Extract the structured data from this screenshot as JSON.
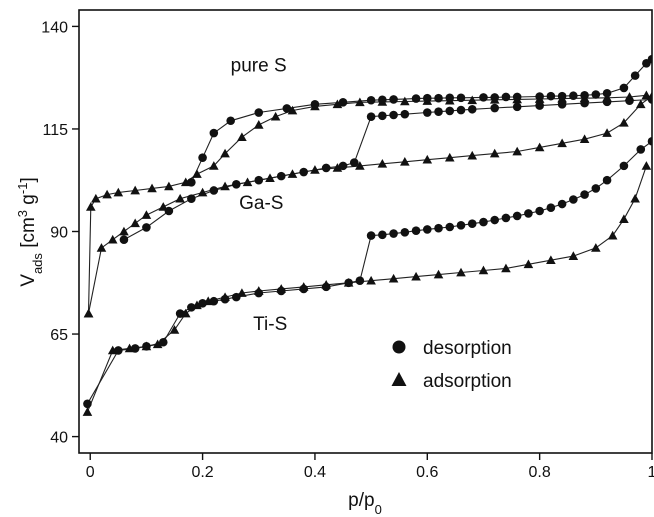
{
  "chart_data": {
    "type": "scatter",
    "xlabel": "p/p0",
    "ylabel": "Vads [cm3 g-1]",
    "xlim": [
      -0.02,
      1.0
    ],
    "ylim": [
      36,
      144
    ],
    "xticks": [
      {
        "value": 0,
        "label": "0"
      },
      {
        "value": 0.2,
        "label": "0.2"
      },
      {
        "value": 0.4,
        "label": "0.4"
      },
      {
        "value": 0.6,
        "label": "0.6"
      },
      {
        "value": 0.8,
        "label": "0.8"
      },
      {
        "value": 1.0,
        "label": "1"
      }
    ],
    "yticks": [
      {
        "value": 40,
        "label": "40"
      },
      {
        "value": 65,
        "label": "65"
      },
      {
        "value": 90,
        "label": "90"
      },
      {
        "value": 115,
        "label": "115"
      },
      {
        "value": 140,
        "label": "140"
      }
    ],
    "legend": {
      "placement": "lower-right",
      "entries": [
        {
          "label": "desorption",
          "marker": "circle"
        },
        {
          "label": "adsorption",
          "marker": "triangle"
        }
      ]
    },
    "annotations": [
      {
        "text": "pure S",
        "x": 0.25,
        "y": 129
      },
      {
        "text": "Ga-S",
        "x": 0.265,
        "y": 95.5
      },
      {
        "text": "Ti-S",
        "x": 0.29,
        "y": 66
      }
    ],
    "series": [
      {
        "group": "pure S",
        "kind": "adsorption",
        "marker": "triangle",
        "points": [
          [
            -0.003,
            70
          ],
          [
            0.001,
            96
          ],
          [
            0.01,
            98
          ],
          [
            0.03,
            99
          ],
          [
            0.05,
            99.5
          ],
          [
            0.08,
            100
          ],
          [
            0.11,
            100.5
          ],
          [
            0.14,
            101
          ],
          [
            0.17,
            102
          ],
          [
            0.19,
            104
          ],
          [
            0.22,
            106
          ],
          [
            0.24,
            109
          ],
          [
            0.27,
            113
          ],
          [
            0.3,
            116
          ],
          [
            0.33,
            118
          ],
          [
            0.36,
            119.5
          ],
          [
            0.4,
            120.5
          ],
          [
            0.44,
            121
          ],
          [
            0.48,
            121.5
          ],
          [
            0.52,
            121.6
          ],
          [
            0.56,
            121.7
          ],
          [
            0.6,
            121.8
          ],
          [
            0.64,
            121.9
          ],
          [
            0.68,
            122
          ],
          [
            0.72,
            122.1
          ],
          [
            0.76,
            122.2
          ],
          [
            0.8,
            122.3
          ],
          [
            0.84,
            122.4
          ],
          [
            0.88,
            122.5
          ],
          [
            0.92,
            122.6
          ],
          [
            0.96,
            122.8
          ],
          [
            0.99,
            123.2
          ]
        ]
      },
      {
        "group": "pure S",
        "kind": "desorption",
        "marker": "circle",
        "points": [
          [
            0.18,
            102
          ],
          [
            0.2,
            108
          ],
          [
            0.22,
            114
          ],
          [
            0.25,
            117
          ],
          [
            0.3,
            119
          ],
          [
            0.35,
            120
          ],
          [
            0.4,
            121
          ],
          [
            0.45,
            121.5
          ],
          [
            0.5,
            122
          ],
          [
            0.52,
            122.1
          ],
          [
            0.54,
            122.2
          ],
          [
            0.58,
            122.4
          ],
          [
            0.6,
            122.5
          ],
          [
            0.62,
            122.5
          ],
          [
            0.64,
            122.6
          ],
          [
            0.66,
            122.6
          ],
          [
            0.7,
            122.7
          ],
          [
            0.72,
            122.7
          ],
          [
            0.74,
            122.8
          ],
          [
            0.76,
            122.8
          ],
          [
            0.8,
            122.9
          ],
          [
            0.82,
            123
          ],
          [
            0.84,
            123
          ],
          [
            0.86,
            123.1
          ],
          [
            0.88,
            123.2
          ],
          [
            0.9,
            123.4
          ],
          [
            0.92,
            123.7
          ],
          [
            0.95,
            125
          ],
          [
            0.97,
            128
          ],
          [
            0.99,
            131
          ],
          [
            1.0,
            132
          ]
        ]
      },
      {
        "group": "Ga-S",
        "kind": "adsorption",
        "marker": "triangle",
        "points": [
          [
            -0.003,
            70
          ],
          [
            0.02,
            86
          ],
          [
            0.04,
            88
          ],
          [
            0.06,
            90
          ],
          [
            0.08,
            92
          ],
          [
            0.1,
            94
          ],
          [
            0.13,
            96
          ],
          [
            0.16,
            98
          ],
          [
            0.2,
            99.5
          ],
          [
            0.24,
            101
          ],
          [
            0.28,
            102
          ],
          [
            0.32,
            103
          ],
          [
            0.36,
            104
          ],
          [
            0.4,
            105
          ],
          [
            0.44,
            105.5
          ],
          [
            0.48,
            106
          ],
          [
            0.52,
            106.5
          ],
          [
            0.56,
            107
          ],
          [
            0.6,
            107.5
          ],
          [
            0.64,
            108
          ],
          [
            0.68,
            108.5
          ],
          [
            0.72,
            109
          ],
          [
            0.76,
            109.5
          ],
          [
            0.8,
            110.5
          ],
          [
            0.84,
            111.5
          ],
          [
            0.88,
            112.5
          ],
          [
            0.92,
            114
          ],
          [
            0.95,
            116.5
          ],
          [
            0.98,
            121
          ],
          [
            1.0,
            123
          ]
        ]
      },
      {
        "group": "Ga-S",
        "kind": "desorption",
        "marker": "circle",
        "points": [
          [
            0.06,
            88
          ],
          [
            0.1,
            91
          ],
          [
            0.14,
            95
          ],
          [
            0.18,
            98
          ],
          [
            0.22,
            100
          ],
          [
            0.26,
            101.5
          ],
          [
            0.3,
            102.5
          ],
          [
            0.34,
            103.5
          ],
          [
            0.38,
            104.5
          ],
          [
            0.42,
            105.5
          ],
          [
            0.45,
            106
          ],
          [
            0.47,
            106.8
          ],
          [
            0.5,
            118
          ],
          [
            0.52,
            118.2
          ],
          [
            0.54,
            118.4
          ],
          [
            0.56,
            118.6
          ],
          [
            0.6,
            119
          ],
          [
            0.62,
            119.2
          ],
          [
            0.64,
            119.4
          ],
          [
            0.66,
            119.6
          ],
          [
            0.68,
            119.8
          ],
          [
            0.72,
            120.1
          ],
          [
            0.76,
            120.4
          ],
          [
            0.8,
            120.7
          ],
          [
            0.84,
            121
          ],
          [
            0.88,
            121.3
          ],
          [
            0.92,
            121.6
          ],
          [
            0.96,
            121.9
          ],
          [
            1.0,
            122.2
          ]
        ]
      },
      {
        "group": "Ti-S",
        "kind": "adsorption",
        "marker": "triangle",
        "points": [
          [
            -0.005,
            46
          ],
          [
            0.04,
            61
          ],
          [
            0.07,
            61.5
          ],
          [
            0.1,
            62
          ],
          [
            0.12,
            62.5
          ],
          [
            0.15,
            66
          ],
          [
            0.17,
            70
          ],
          [
            0.19,
            72
          ],
          [
            0.21,
            73
          ],
          [
            0.24,
            74
          ],
          [
            0.27,
            75
          ],
          [
            0.3,
            75.5
          ],
          [
            0.34,
            76
          ],
          [
            0.38,
            76.5
          ],
          [
            0.42,
            77
          ],
          [
            0.46,
            77.5
          ],
          [
            0.5,
            78
          ],
          [
            0.54,
            78.5
          ],
          [
            0.58,
            79
          ],
          [
            0.62,
            79.5
          ],
          [
            0.66,
            80
          ],
          [
            0.7,
            80.5
          ],
          [
            0.74,
            81
          ],
          [
            0.78,
            82
          ],
          [
            0.82,
            83
          ],
          [
            0.86,
            84
          ],
          [
            0.9,
            86
          ],
          [
            0.93,
            89
          ],
          [
            0.95,
            93
          ],
          [
            0.97,
            98
          ],
          [
            0.99,
            106
          ]
        ]
      },
      {
        "group": "Ti-S",
        "kind": "desorption",
        "marker": "circle",
        "points": [
          [
            -0.005,
            48
          ],
          [
            0.05,
            61
          ],
          [
            0.08,
            61.5
          ],
          [
            0.1,
            62
          ],
          [
            0.13,
            63
          ],
          [
            0.16,
            70
          ],
          [
            0.18,
            71.5
          ],
          [
            0.2,
            72.5
          ],
          [
            0.22,
            73
          ],
          [
            0.24,
            73.5
          ],
          [
            0.26,
            74
          ],
          [
            0.3,
            75
          ],
          [
            0.34,
            75.5
          ],
          [
            0.38,
            76
          ],
          [
            0.42,
            76.5
          ],
          [
            0.46,
            77.5
          ],
          [
            0.48,
            78
          ],
          [
            0.5,
            89
          ],
          [
            0.52,
            89.2
          ],
          [
            0.54,
            89.5
          ],
          [
            0.56,
            89.8
          ],
          [
            0.58,
            90.2
          ],
          [
            0.6,
            90.5
          ],
          [
            0.62,
            90.8
          ],
          [
            0.64,
            91.1
          ],
          [
            0.66,
            91.5
          ],
          [
            0.68,
            91.9
          ],
          [
            0.7,
            92.3
          ],
          [
            0.72,
            92.8
          ],
          [
            0.74,
            93.3
          ],
          [
            0.76,
            93.8
          ],
          [
            0.78,
            94.4
          ],
          [
            0.8,
            95
          ],
          [
            0.82,
            95.8
          ],
          [
            0.84,
            96.7
          ],
          [
            0.86,
            97.8
          ],
          [
            0.88,
            99
          ],
          [
            0.9,
            100.5
          ],
          [
            0.92,
            102.5
          ],
          [
            0.95,
            106
          ],
          [
            0.98,
            110
          ],
          [
            1.0,
            112
          ]
        ]
      }
    ]
  }
}
